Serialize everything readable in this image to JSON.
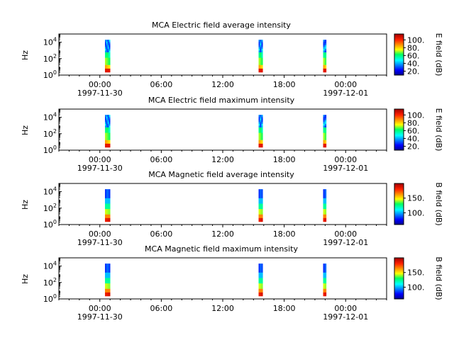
{
  "chart_data": [
    {
      "type": "heatmap",
      "title": "MCA  Electric field average intensity",
      "ylabel": "Hz",
      "yscale": "log",
      "ylim": [
        1,
        100000
      ],
      "yticks": [
        {
          "base": "10",
          "exp": "0"
        },
        {
          "base": "10",
          "exp": "2"
        },
        {
          "base": "10",
          "exp": "4"
        }
      ],
      "xlim_hours": [
        -4,
        28
      ],
      "xticks": [
        {
          "hour": 0,
          "label": "00:00",
          "date": "1997-11-30"
        },
        {
          "hour": 6,
          "label": "06:00",
          "date": ""
        },
        {
          "hour": 12,
          "label": "12:00",
          "date": ""
        },
        {
          "hour": 18,
          "label": "18:00",
          "date": ""
        },
        {
          "hour": 24,
          "label": "00:00",
          "date": "1997-12-01"
        }
      ],
      "bursts": [
        {
          "start": 0.5,
          "end": 1.0
        },
        {
          "start": 15.5,
          "end": 15.9
        },
        {
          "start": 21.8,
          "end": 22.1
        }
      ],
      "colorbar": {
        "label": "E field (dB)",
        "range": [
          10,
          115
        ],
        "ticks": [
          "20.",
          "40.",
          "60.",
          "80.",
          "100."
        ],
        "tick_values": [
          20,
          40,
          60,
          80,
          100
        ]
      },
      "field": "E"
    },
    {
      "type": "heatmap",
      "title": "MCA  Electric field maximum intensity",
      "ylabel": "Hz",
      "yscale": "log",
      "ylim": [
        1,
        100000
      ],
      "yticks": [
        {
          "base": "10",
          "exp": "0"
        },
        {
          "base": "10",
          "exp": "2"
        },
        {
          "base": "10",
          "exp": "4"
        }
      ],
      "xlim_hours": [
        -4,
        28
      ],
      "xticks": [
        {
          "hour": 0,
          "label": "00:00",
          "date": "1997-11-30"
        },
        {
          "hour": 6,
          "label": "06:00",
          "date": ""
        },
        {
          "hour": 12,
          "label": "12:00",
          "date": ""
        },
        {
          "hour": 18,
          "label": "18:00",
          "date": ""
        },
        {
          "hour": 24,
          "label": "00:00",
          "date": "1997-12-01"
        }
      ],
      "bursts": [
        {
          "start": 0.5,
          "end": 1.0
        },
        {
          "start": 15.5,
          "end": 15.9
        },
        {
          "start": 21.8,
          "end": 22.1
        }
      ],
      "colorbar": {
        "label": "E field (dB)",
        "range": [
          10,
          115
        ],
        "ticks": [
          "20.",
          "40.",
          "60.",
          "80.",
          "100."
        ],
        "tick_values": [
          20,
          40,
          60,
          80,
          100
        ]
      },
      "field": "E"
    },
    {
      "type": "heatmap",
      "title": "MCA  Magnetic field average intensity",
      "ylabel": "Hz",
      "yscale": "log",
      "ylim": [
        1,
        100000
      ],
      "yticks": [
        {
          "base": "10",
          "exp": "0"
        },
        {
          "base": "10",
          "exp": "2"
        },
        {
          "base": "10",
          "exp": "4"
        }
      ],
      "xlim_hours": [
        -4,
        28
      ],
      "xticks": [
        {
          "hour": 0,
          "label": "00:00",
          "date": "1997-11-30"
        },
        {
          "hour": 6,
          "label": "06:00",
          "date": ""
        },
        {
          "hour": 12,
          "label": "12:00",
          "date": ""
        },
        {
          "hour": 18,
          "label": "18:00",
          "date": ""
        },
        {
          "hour": 24,
          "label": "00:00",
          "date": "1997-12-01"
        }
      ],
      "bursts": [
        {
          "start": 0.5,
          "end": 1.0
        },
        {
          "start": 15.5,
          "end": 15.9
        },
        {
          "start": 21.8,
          "end": 22.1
        }
      ],
      "colorbar": {
        "label": "B field (dB)",
        "range": [
          60,
          200
        ],
        "ticks": [
          "100.",
          "150."
        ],
        "tick_values": [
          100,
          150
        ]
      },
      "field": "B"
    },
    {
      "type": "heatmap",
      "title": "MCA  Magnetic field maximum intensity",
      "ylabel": "Hz",
      "yscale": "log",
      "ylim": [
        1,
        100000
      ],
      "yticks": [
        {
          "base": "10",
          "exp": "0"
        },
        {
          "base": "10",
          "exp": "2"
        },
        {
          "base": "10",
          "exp": "4"
        }
      ],
      "xlim_hours": [
        -4,
        28
      ],
      "xticks": [
        {
          "hour": 0,
          "label": "00:00",
          "date": "1997-11-30"
        },
        {
          "hour": 6,
          "label": "06:00",
          "date": ""
        },
        {
          "hour": 12,
          "label": "12:00",
          "date": ""
        },
        {
          "hour": 18,
          "label": "18:00",
          "date": ""
        },
        {
          "hour": 24,
          "label": "00:00",
          "date": "1997-12-01"
        }
      ],
      "bursts": [
        {
          "start": 0.5,
          "end": 1.0
        },
        {
          "start": 15.5,
          "end": 15.9
        },
        {
          "start": 21.8,
          "end": 22.1
        }
      ],
      "colorbar": {
        "label": "B field (dB)",
        "range": [
          60,
          200
        ],
        "ticks": [
          "100.",
          "150."
        ],
        "tick_values": [
          100,
          150
        ]
      },
      "field": "B"
    }
  ]
}
